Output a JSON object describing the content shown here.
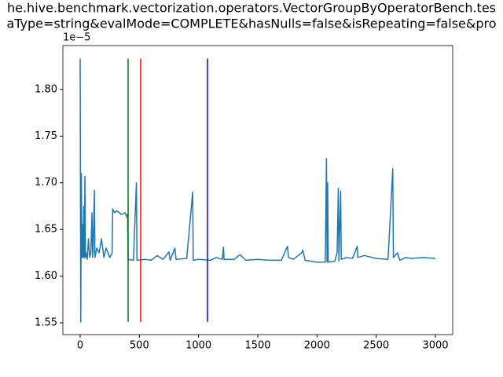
{
  "chart_data": {
    "type": "line",
    "title": [
      "he.hive.benchmark.vectorization.operators.VectorGroupByOperatorBench.tes",
      "aType=string&evalMode=COMPLETE&hasNulls=false&isRepeating=false&pro"
    ],
    "offset_label": "1e−5",
    "xlim": [
      -146,
      3146
    ],
    "ylim": [
      1.5374,
      1.847
    ],
    "xticks": [
      0,
      500,
      1000,
      1500,
      2000,
      2500,
      3000
    ],
    "yticks": [
      1.55,
      {
        "value": 1.6,
        "label": "1.60"
      },
      1.65,
      {
        "value": 1.7,
        "label": "1.70"
      },
      1.75,
      {
        "value": 1.8,
        "label": "1.80"
      }
    ],
    "series": [
      {
        "color": "#1f77b4",
        "x": [
          0,
          5,
          10,
          15,
          20,
          25,
          30,
          35,
          40,
          45,
          50,
          60,
          70,
          80,
          90,
          100,
          105,
          110,
          120,
          125,
          140,
          160,
          180,
          200,
          220,
          250,
          270,
          275,
          290,
          310,
          350,
          380,
          395,
          400,
          405,
          450,
          475,
          480,
          550,
          600,
          650,
          700,
          750,
          760,
          800,
          810,
          900,
          950,
          955,
          1000,
          1100,
          1150,
          1200,
          1210,
          1215,
          1300,
          1350,
          1400,
          1500,
          1600,
          1700,
          1750,
          1760,
          1800,
          1870,
          1880,
          1900,
          2000,
          2070,
          2080,
          2085,
          2090,
          2095,
          2150,
          2170,
          2180,
          2185,
          2200,
          2205,
          2250,
          2300,
          2340,
          2345,
          2400,
          2500,
          2600,
          2640,
          2645,
          2680,
          2700,
          2750,
          2800,
          2900,
          3000
        ],
        "values": [
          1.833,
          1.551,
          1.71,
          1.62,
          1.655,
          1.62,
          1.675,
          1.62,
          1.707,
          1.62,
          1.625,
          1.618,
          1.64,
          1.62,
          1.625,
          1.668,
          1.62,
          1.63,
          1.692,
          1.62,
          1.63,
          1.625,
          1.64,
          1.62,
          1.63,
          1.62,
          1.625,
          1.672,
          1.668,
          1.67,
          1.666,
          1.668,
          1.663,
          1.666,
          1.618,
          1.617,
          1.7,
          1.617,
          1.618,
          1.617,
          1.622,
          1.618,
          1.626,
          1.617,
          1.63,
          1.618,
          1.619,
          1.69,
          1.617,
          1.618,
          1.617,
          1.62,
          1.618,
          1.631,
          1.618,
          1.618,
          1.623,
          1.617,
          1.618,
          1.617,
          1.617,
          1.632,
          1.62,
          1.618,
          1.625,
          1.628,
          1.617,
          1.615,
          1.615,
          1.726,
          1.615,
          1.7,
          1.615,
          1.616,
          1.625,
          1.694,
          1.616,
          1.691,
          1.618,
          1.62,
          1.619,
          1.632,
          1.62,
          1.622,
          1.619,
          1.618,
          1.715,
          1.62,
          1.625,
          1.617,
          1.62,
          1.619,
          1.62,
          1.619
        ]
      }
    ],
    "vlines": {
      "x": [
        405,
        511,
        1075
      ],
      "colors": [
        "#008000",
        "#ff0000",
        "#0000ff"
      ],
      "ymin": 1.551,
      "ymax": 1.833
    }
  }
}
